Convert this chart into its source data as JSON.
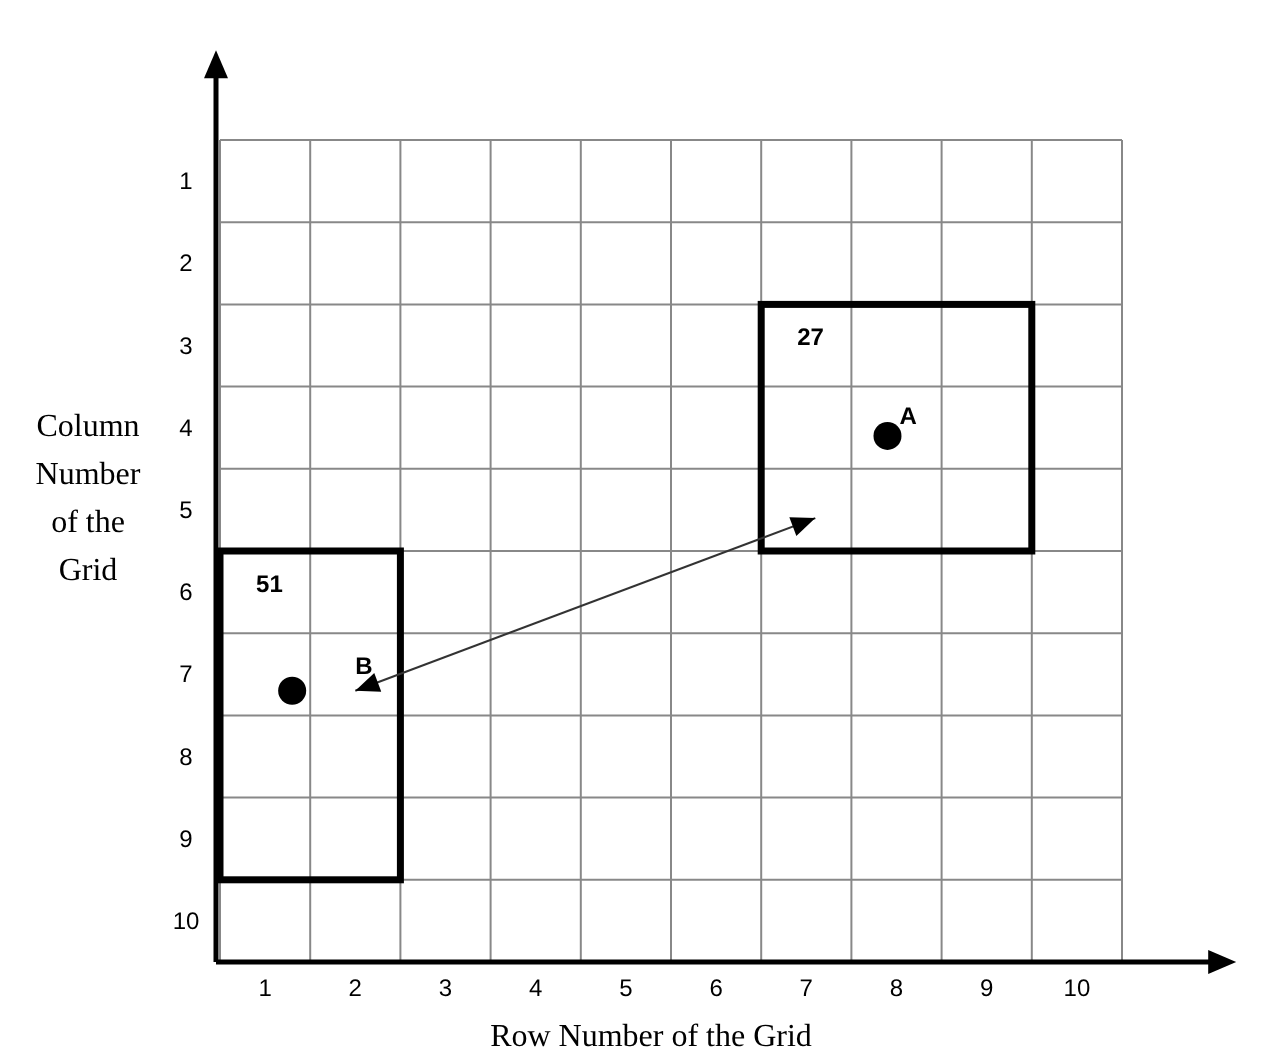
{
  "chart_data": {
    "type": "scatter",
    "xlabel": "Row Number of the Grid",
    "ylabel": "Column Number of the Grid",
    "xlim": [
      0.5,
      11.5
    ],
    "xticks": [
      1,
      2,
      3,
      4,
      5,
      6,
      7,
      8,
      9,
      10
    ],
    "ylim": [
      10.5,
      -0.3
    ],
    "yticks": [
      1,
      2,
      3,
      4,
      5,
      6,
      7,
      8,
      9,
      10
    ],
    "grid": true,
    "marker": "circle",
    "series": [
      {
        "color": "#000000",
        "x": [
          7.9,
          1.3
        ],
        "values": [
          4.1,
          7.2
        ]
      }
    ],
    "annotations": [
      {
        "text": "A",
        "x": 7.9,
        "y": 4.1
      },
      "B",
      "27",
      "51"
    ]
  }
}
